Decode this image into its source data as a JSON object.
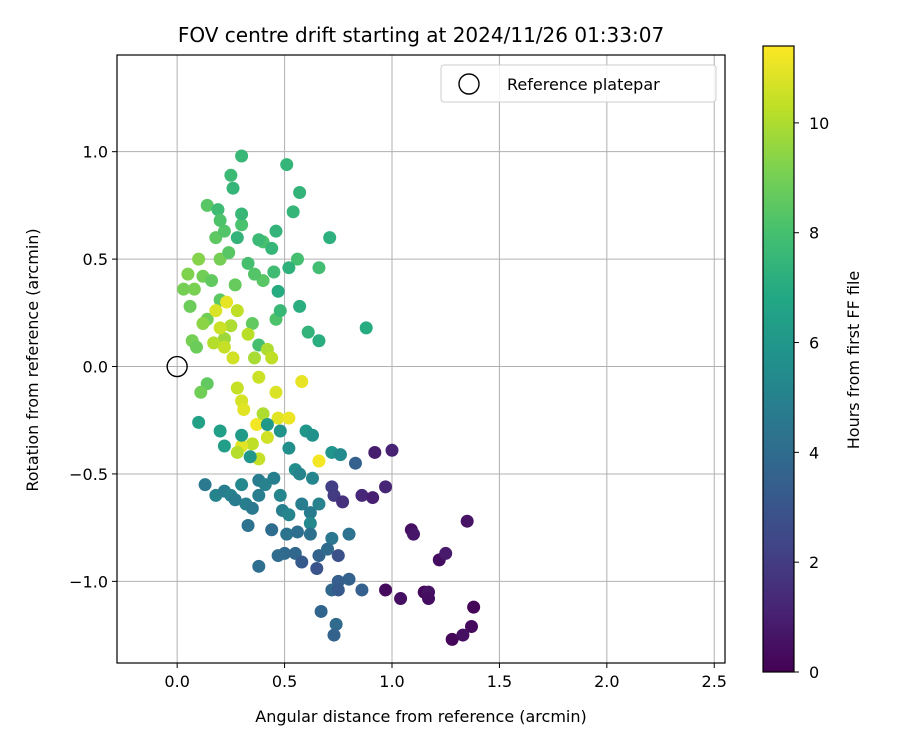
{
  "chart_data": {
    "type": "scatter",
    "title": "FOV centre drift starting at 2024/11/26 01:33:07",
    "xlabel": "Angular distance from reference (arcmin)",
    "ylabel": "Rotation from reference (arcmin)",
    "xlim": [
      -0.28,
      2.55
    ],
    "ylim": [
      -1.38,
      1.45
    ],
    "xticks": [
      0.0,
      0.5,
      1.0,
      1.5,
      2.0,
      2.5
    ],
    "yticks": [
      -1.0,
      -0.5,
      0.0,
      0.5,
      1.0
    ],
    "xtick_labels": [
      "0.0",
      "0.5",
      "1.0",
      "1.5",
      "2.0",
      "2.5"
    ],
    "ytick_labels": [
      "−1.0",
      "−0.5",
      "0.0",
      "0.5",
      "1.0"
    ],
    "grid": true,
    "legend": {
      "label": "Reference platepar",
      "location": "upper right"
    },
    "reference_point": {
      "x": 0.0,
      "y": 0.0
    },
    "colorbar": {
      "label": "Hours from first FF file",
      "range": [
        0,
        11.4
      ],
      "ticks": [
        0,
        2,
        4,
        6,
        8,
        10
      ],
      "tick_labels": [
        "0",
        "2",
        "4",
        "6",
        "8",
        "10"
      ],
      "colormap": "viridis"
    },
    "points": [
      {
        "x": 0.27,
        "y": 0.38,
        "h": 8.7
      },
      {
        "x": 0.4,
        "y": 0.4,
        "h": 8.4
      },
      {
        "x": 0.46,
        "y": 0.22,
        "h": 8.2
      },
      {
        "x": 0.12,
        "y": 0.42,
        "h": 8.9
      },
      {
        "x": 0.18,
        "y": 0.6,
        "h": 8.5
      },
      {
        "x": 0.22,
        "y": 0.63,
        "h": 8.3
      },
      {
        "x": 0.3,
        "y": 0.66,
        "h": 8.1
      },
      {
        "x": 0.35,
        "y": 0.2,
        "h": 8.6
      },
      {
        "x": 0.08,
        "y": 0.36,
        "h": 9.1
      },
      {
        "x": 0.06,
        "y": 0.28,
        "h": 8.8
      },
      {
        "x": 0.14,
        "y": 0.22,
        "h": 8.9
      },
      {
        "x": 0.2,
        "y": 0.31,
        "h": 8.5
      },
      {
        "x": 0.38,
        "y": 0.1,
        "h": 8.0
      },
      {
        "x": 0.4,
        "y": 0.58,
        "h": 8.1
      },
      {
        "x": 0.56,
        "y": 0.5,
        "h": 8.0
      },
      {
        "x": 0.66,
        "y": 0.46,
        "h": 7.9
      },
      {
        "x": 0.3,
        "y": 0.98,
        "h": 7.6
      },
      {
        "x": 0.51,
        "y": 0.94,
        "h": 7.5
      },
      {
        "x": 0.25,
        "y": 0.89,
        "h": 7.7
      },
      {
        "x": 0.26,
        "y": 0.83,
        "h": 7.5
      },
      {
        "x": 0.57,
        "y": 0.81,
        "h": 7.4
      },
      {
        "x": 0.14,
        "y": 0.75,
        "h": 8.4
      },
      {
        "x": 0.19,
        "y": 0.73,
        "h": 7.8
      },
      {
        "x": 0.54,
        "y": 0.72,
        "h": 7.5
      },
      {
        "x": 0.2,
        "y": 0.68,
        "h": 8.2
      },
      {
        "x": 0.3,
        "y": 0.71,
        "h": 7.6
      },
      {
        "x": 0.46,
        "y": 0.63,
        "h": 7.4
      },
      {
        "x": 0.71,
        "y": 0.6,
        "h": 7.2
      },
      {
        "x": 0.28,
        "y": 0.6,
        "h": 7.4
      },
      {
        "x": 0.38,
        "y": 0.59,
        "h": 7.7
      },
      {
        "x": 0.44,
        "y": 0.55,
        "h": 7.5
      },
      {
        "x": 0.52,
        "y": 0.46,
        "h": 7.3
      },
      {
        "x": 0.45,
        "y": 0.44,
        "h": 7.8
      },
      {
        "x": 0.47,
        "y": 0.35,
        "h": 7.0
      },
      {
        "x": 0.57,
        "y": 0.28,
        "h": 7.1
      },
      {
        "x": 0.48,
        "y": 0.26,
        "h": 7.6
      },
      {
        "x": 0.88,
        "y": 0.18,
        "h": 7.0
      },
      {
        "x": 0.61,
        "y": 0.16,
        "h": 7.4
      },
      {
        "x": 0.66,
        "y": 0.12,
        "h": 7.1
      },
      {
        "x": 0.1,
        "y": -0.26,
        "h": 6.5
      },
      {
        "x": 0.2,
        "y": 0.5,
        "h": 9.0
      },
      {
        "x": 0.1,
        "y": 0.5,
        "h": 9.3
      },
      {
        "x": 0.05,
        "y": 0.43,
        "h": 9.2
      },
      {
        "x": 0.03,
        "y": 0.36,
        "h": 9.0
      },
      {
        "x": 0.16,
        "y": 0.4,
        "h": 8.6
      },
      {
        "x": 0.24,
        "y": 0.53,
        "h": 8.4
      },
      {
        "x": 0.33,
        "y": 0.48,
        "h": 8.0
      },
      {
        "x": 0.36,
        "y": 0.43,
        "h": 8.3
      },
      {
        "x": 0.12,
        "y": 0.2,
        "h": 9.4
      },
      {
        "x": 0.07,
        "y": 0.12,
        "h": 9.0
      },
      {
        "x": 0.09,
        "y": 0.09,
        "h": 8.8
      },
      {
        "x": 0.14,
        "y": -0.08,
        "h": 8.6
      },
      {
        "x": 0.11,
        "y": -0.12,
        "h": 8.9
      },
      {
        "x": 0.22,
        "y": 0.13,
        "h": 9.7
      },
      {
        "x": 0.25,
        "y": 0.19,
        "h": 10.0
      },
      {
        "x": 0.28,
        "y": 0.26,
        "h": 10.3
      },
      {
        "x": 0.18,
        "y": 0.26,
        "h": 10.8
      },
      {
        "x": 0.23,
        "y": 0.3,
        "h": 11.0
      },
      {
        "x": 0.2,
        "y": 0.18,
        "h": 10.5
      },
      {
        "x": 0.17,
        "y": 0.11,
        "h": 10.1
      },
      {
        "x": 0.22,
        "y": 0.09,
        "h": 10.4
      },
      {
        "x": 0.26,
        "y": 0.04,
        "h": 10.6
      },
      {
        "x": 0.33,
        "y": 0.15,
        "h": 10.2
      },
      {
        "x": 0.36,
        "y": 0.04,
        "h": 9.9
      },
      {
        "x": 0.42,
        "y": 0.08,
        "h": 10.0
      },
      {
        "x": 0.44,
        "y": 0.04,
        "h": 10.3
      },
      {
        "x": 0.28,
        "y": -0.1,
        "h": 10.4
      },
      {
        "x": 0.3,
        "y": -0.16,
        "h": 10.7
      },
      {
        "x": 0.31,
        "y": -0.2,
        "h": 10.9
      },
      {
        "x": 0.38,
        "y": -0.05,
        "h": 10.5
      },
      {
        "x": 0.46,
        "y": -0.12,
        "h": 10.8
      },
      {
        "x": 0.58,
        "y": -0.07,
        "h": 11.0
      },
      {
        "x": 0.47,
        "y": -0.24,
        "h": 10.9
      },
      {
        "x": 0.52,
        "y": -0.24,
        "h": 11.1
      },
      {
        "x": 0.37,
        "y": -0.27,
        "h": 11.2
      },
      {
        "x": 0.42,
        "y": -0.33,
        "h": 10.6
      },
      {
        "x": 0.35,
        "y": -0.36,
        "h": 10.3
      },
      {
        "x": 0.3,
        "y": -0.37,
        "h": 10.9
      },
      {
        "x": 0.28,
        "y": -0.4,
        "h": 10.1
      },
      {
        "x": 0.38,
        "y": -0.43,
        "h": 10.4
      },
      {
        "x": 0.4,
        "y": -0.22,
        "h": 10.0
      },
      {
        "x": 0.66,
        "y": -0.44,
        "h": 11.2
      },
      {
        "x": 0.2,
        "y": -0.3,
        "h": 6.4
      },
      {
        "x": 0.22,
        "y": -0.37,
        "h": 6.3
      },
      {
        "x": 0.3,
        "y": -0.32,
        "h": 6.2
      },
      {
        "x": 0.34,
        "y": -0.42,
        "h": 6.0
      },
      {
        "x": 0.42,
        "y": -0.27,
        "h": 6.1
      },
      {
        "x": 0.48,
        "y": -0.3,
        "h": 5.8
      },
      {
        "x": 0.52,
        "y": -0.38,
        "h": 5.6
      },
      {
        "x": 0.55,
        "y": -0.48,
        "h": 5.5
      },
      {
        "x": 0.6,
        "y": -0.3,
        "h": 6.0
      },
      {
        "x": 0.63,
        "y": -0.32,
        "h": 5.7
      },
      {
        "x": 0.72,
        "y": -0.4,
        "h": 5.9
      },
      {
        "x": 0.76,
        "y": -0.41,
        "h": 5.4
      },
      {
        "x": 0.57,
        "y": -0.5,
        "h": 5.1
      },
      {
        "x": 0.63,
        "y": -0.52,
        "h": 5.2
      },
      {
        "x": 0.45,
        "y": -0.52,
        "h": 4.9
      },
      {
        "x": 0.38,
        "y": -0.53,
        "h": 4.7
      },
      {
        "x": 0.41,
        "y": -0.55,
        "h": 5.0
      },
      {
        "x": 0.3,
        "y": -0.55,
        "h": 5.3
      },
      {
        "x": 0.13,
        "y": -0.55,
        "h": 4.6
      },
      {
        "x": 0.18,
        "y": -0.6,
        "h": 5.1
      },
      {
        "x": 0.22,
        "y": -0.58,
        "h": 4.8
      },
      {
        "x": 0.25,
        "y": -0.6,
        "h": 5.0
      },
      {
        "x": 0.27,
        "y": -0.62,
        "h": 4.7
      },
      {
        "x": 0.32,
        "y": -0.64,
        "h": 4.9
      },
      {
        "x": 0.35,
        "y": -0.66,
        "h": 4.6
      },
      {
        "x": 0.38,
        "y": -0.6,
        "h": 4.8
      },
      {
        "x": 0.48,
        "y": -0.6,
        "h": 5.2
      },
      {
        "x": 0.49,
        "y": -0.67,
        "h": 4.9
      },
      {
        "x": 0.52,
        "y": -0.69,
        "h": 5.1
      },
      {
        "x": 0.58,
        "y": -0.64,
        "h": 4.8
      },
      {
        "x": 0.62,
        "y": -0.68,
        "h": 4.7
      },
      {
        "x": 0.66,
        "y": -0.64,
        "h": 5.0
      },
      {
        "x": 0.62,
        "y": -0.73,
        "h": 5.3
      },
      {
        "x": 0.33,
        "y": -0.74,
        "h": 4.3
      },
      {
        "x": 0.44,
        "y": -0.76,
        "h": 4.0
      },
      {
        "x": 0.51,
        "y": -0.78,
        "h": 4.4
      },
      {
        "x": 0.56,
        "y": -0.77,
        "h": 4.1
      },
      {
        "x": 0.62,
        "y": -0.78,
        "h": 4.2
      },
      {
        "x": 0.72,
        "y": -0.8,
        "h": 4.5
      },
      {
        "x": 0.8,
        "y": -0.78,
        "h": 4.3
      },
      {
        "x": 0.5,
        "y": -0.87,
        "h": 3.9
      },
      {
        "x": 0.47,
        "y": -0.88,
        "h": 4.0
      },
      {
        "x": 0.55,
        "y": -0.87,
        "h": 3.8
      },
      {
        "x": 0.58,
        "y": -0.91,
        "h": 3.2
      },
      {
        "x": 0.66,
        "y": -0.88,
        "h": 3.6
      },
      {
        "x": 0.7,
        "y": -0.85,
        "h": 3.9
      },
      {
        "x": 0.75,
        "y": -0.88,
        "h": 2.8
      },
      {
        "x": 0.65,
        "y": -0.94,
        "h": 2.9
      },
      {
        "x": 0.38,
        "y": -0.93,
        "h": 4.1
      },
      {
        "x": 0.75,
        "y": -1.0,
        "h": 3.4
      },
      {
        "x": 0.8,
        "y": -0.99,
        "h": 3.6
      },
      {
        "x": 0.72,
        "y": -1.04,
        "h": 3.8
      },
      {
        "x": 0.75,
        "y": -1.04,
        "h": 3.2
      },
      {
        "x": 0.86,
        "y": -1.04,
        "h": 3.5
      },
      {
        "x": 0.67,
        "y": -1.14,
        "h": 3.7
      },
      {
        "x": 0.74,
        "y": -1.2,
        "h": 3.9
      },
      {
        "x": 0.73,
        "y": -1.25,
        "h": 3.6
      },
      {
        "x": 0.83,
        "y": -0.45,
        "h": 3.5
      },
      {
        "x": 0.72,
        "y": -0.56,
        "h": 2.1
      },
      {
        "x": 0.73,
        "y": -0.6,
        "h": 2.0
      },
      {
        "x": 0.77,
        "y": -0.63,
        "h": 1.6
      },
      {
        "x": 0.86,
        "y": -0.6,
        "h": 1.3
      },
      {
        "x": 0.91,
        "y": -0.61,
        "h": 1.0
      },
      {
        "x": 0.97,
        "y": -0.56,
        "h": 1.2
      },
      {
        "x": 0.92,
        "y": -0.4,
        "h": 0.9
      },
      {
        "x": 1.0,
        "y": -0.39,
        "h": 1.1
      },
      {
        "x": 1.09,
        "y": -0.76,
        "h": 0.5
      },
      {
        "x": 1.1,
        "y": -0.78,
        "h": 0.7
      },
      {
        "x": 1.35,
        "y": -0.72,
        "h": 0.6
      },
      {
        "x": 1.22,
        "y": -0.9,
        "h": 0.4
      },
      {
        "x": 1.25,
        "y": -0.87,
        "h": 0.8
      },
      {
        "x": 0.97,
        "y": -1.04,
        "h": 0.3
      },
      {
        "x": 1.04,
        "y": -1.08,
        "h": 0.5
      },
      {
        "x": 1.15,
        "y": -1.05,
        "h": 0.2
      },
      {
        "x": 1.17,
        "y": -1.05,
        "h": 0.6
      },
      {
        "x": 1.17,
        "y": -1.08,
        "h": 0.4
      },
      {
        "x": 1.38,
        "y": -1.12,
        "h": 0.1
      },
      {
        "x": 1.37,
        "y": -1.21,
        "h": 0.3
      },
      {
        "x": 1.28,
        "y": -1.27,
        "h": 0.2
      },
      {
        "x": 1.33,
        "y": -1.25,
        "h": 0.5
      }
    ]
  }
}
